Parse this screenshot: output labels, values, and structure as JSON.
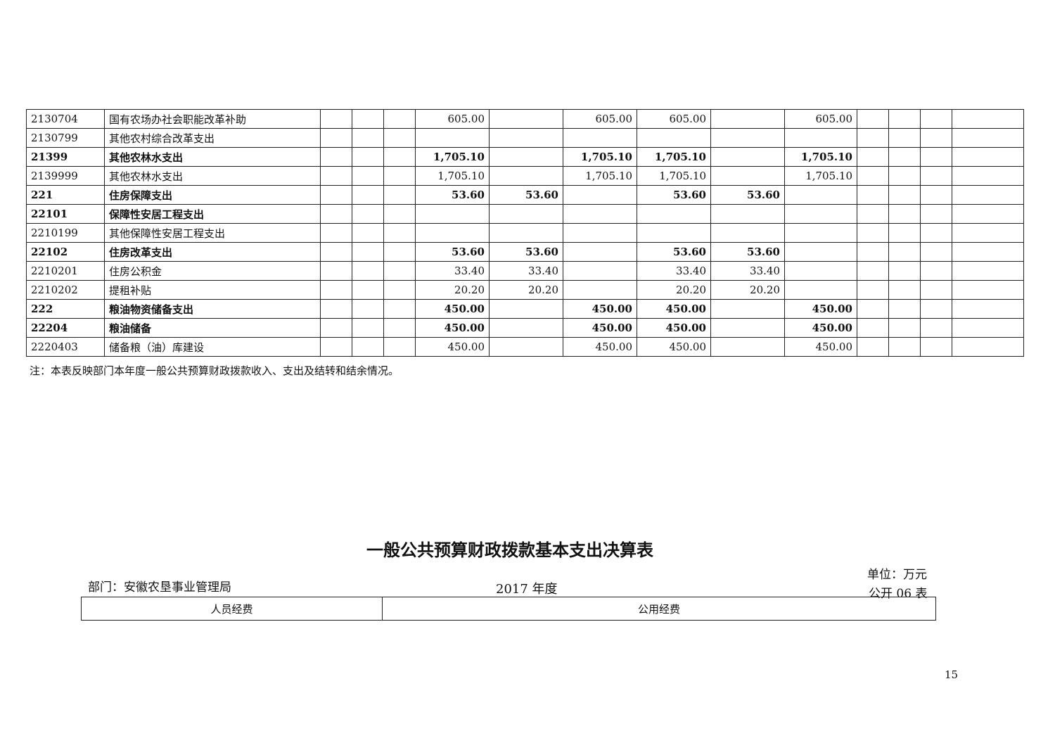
{
  "rows": [
    {
      "code": "2130704",
      "name": "国有农场办社会职能改革补助",
      "bold": false,
      "v": [
        "",
        "",
        "",
        "605.00",
        "",
        "605.00",
        "605.00",
        "",
        "605.00",
        "",
        "",
        "",
        ""
      ]
    },
    {
      "code": "2130799",
      "name": "其他农村综合改革支出",
      "bold": false,
      "v": [
        "",
        "",
        "",
        "",
        "",
        "",
        "",
        "",
        "",
        "",
        "",
        "",
        ""
      ]
    },
    {
      "code": "21399",
      "name": "其他农林水支出",
      "bold": true,
      "v": [
        "",
        "",
        "",
        "1,705.10",
        "",
        "1,705.10",
        "1,705.10",
        "",
        "1,705.10",
        "",
        "",
        "",
        ""
      ]
    },
    {
      "code": "2139999",
      "name": "其他农林水支出",
      "bold": false,
      "v": [
        "",
        "",
        "",
        "1,705.10",
        "",
        "1,705.10",
        "1,705.10",
        "",
        "1,705.10",
        "",
        "",
        "",
        ""
      ]
    },
    {
      "code": "221",
      "name": "住房保障支出",
      "bold": true,
      "v": [
        "",
        "",
        "",
        "53.60",
        "53.60",
        "",
        "53.60",
        "53.60",
        "",
        "",
        "",
        "",
        ""
      ]
    },
    {
      "code": "22101",
      "name": "保障性安居工程支出",
      "bold": true,
      "v": [
        "",
        "",
        "",
        "",
        "",
        "",
        "",
        "",
        "",
        "",
        "",
        "",
        ""
      ]
    },
    {
      "code": "2210199",
      "name": "其他保障性安居工程支出",
      "bold": false,
      "v": [
        "",
        "",
        "",
        "",
        "",
        "",
        "",
        "",
        "",
        "",
        "",
        "",
        ""
      ]
    },
    {
      "code": "22102",
      "name": "住房改革支出",
      "bold": true,
      "v": [
        "",
        "",
        "",
        "53.60",
        "53.60",
        "",
        "53.60",
        "53.60",
        "",
        "",
        "",
        "",
        ""
      ]
    },
    {
      "code": "2210201",
      "name": "住房公积金",
      "bold": false,
      "v": [
        "",
        "",
        "",
        "33.40",
        "33.40",
        "",
        "33.40",
        "33.40",
        "",
        "",
        "",
        "",
        ""
      ]
    },
    {
      "code": "2210202",
      "name": "提租补贴",
      "bold": false,
      "v": [
        "",
        "",
        "",
        "20.20",
        "20.20",
        "",
        "20.20",
        "20.20",
        "",
        "",
        "",
        "",
        ""
      ]
    },
    {
      "code": "222",
      "name": "粮油物资储备支出",
      "bold": true,
      "v": [
        "",
        "",
        "",
        "450.00",
        "",
        "450.00",
        "450.00",
        "",
        "450.00",
        "",
        "",
        "",
        ""
      ]
    },
    {
      "code": "22204",
      "name": "粮油储备",
      "bold": true,
      "v": [
        "",
        "",
        "",
        "450.00",
        "",
        "450.00",
        "450.00",
        "",
        "450.00",
        "",
        "",
        "",
        ""
      ]
    },
    {
      "code": "2220403",
      "name": "储备粮（油）库建设",
      "bold": false,
      "v": [
        "",
        "",
        "",
        "450.00",
        "",
        "450.00",
        "450.00",
        "",
        "450.00",
        "",
        "",
        "",
        ""
      ]
    }
  ],
  "note": "注：本表反映部门本年度一般公共预算财政拨款收入、支出及结转和结余情况。",
  "second_table": {
    "title": "一般公共预算财政拨款基本支出决算表",
    "department": "部门：安徽农垦事业管理局",
    "year": "2017 年度",
    "unit": "单位：万元",
    "form_no": "公开 06 表",
    "headers": [
      "人员经费",
      "公用经费"
    ]
  },
  "page_number": "15"
}
